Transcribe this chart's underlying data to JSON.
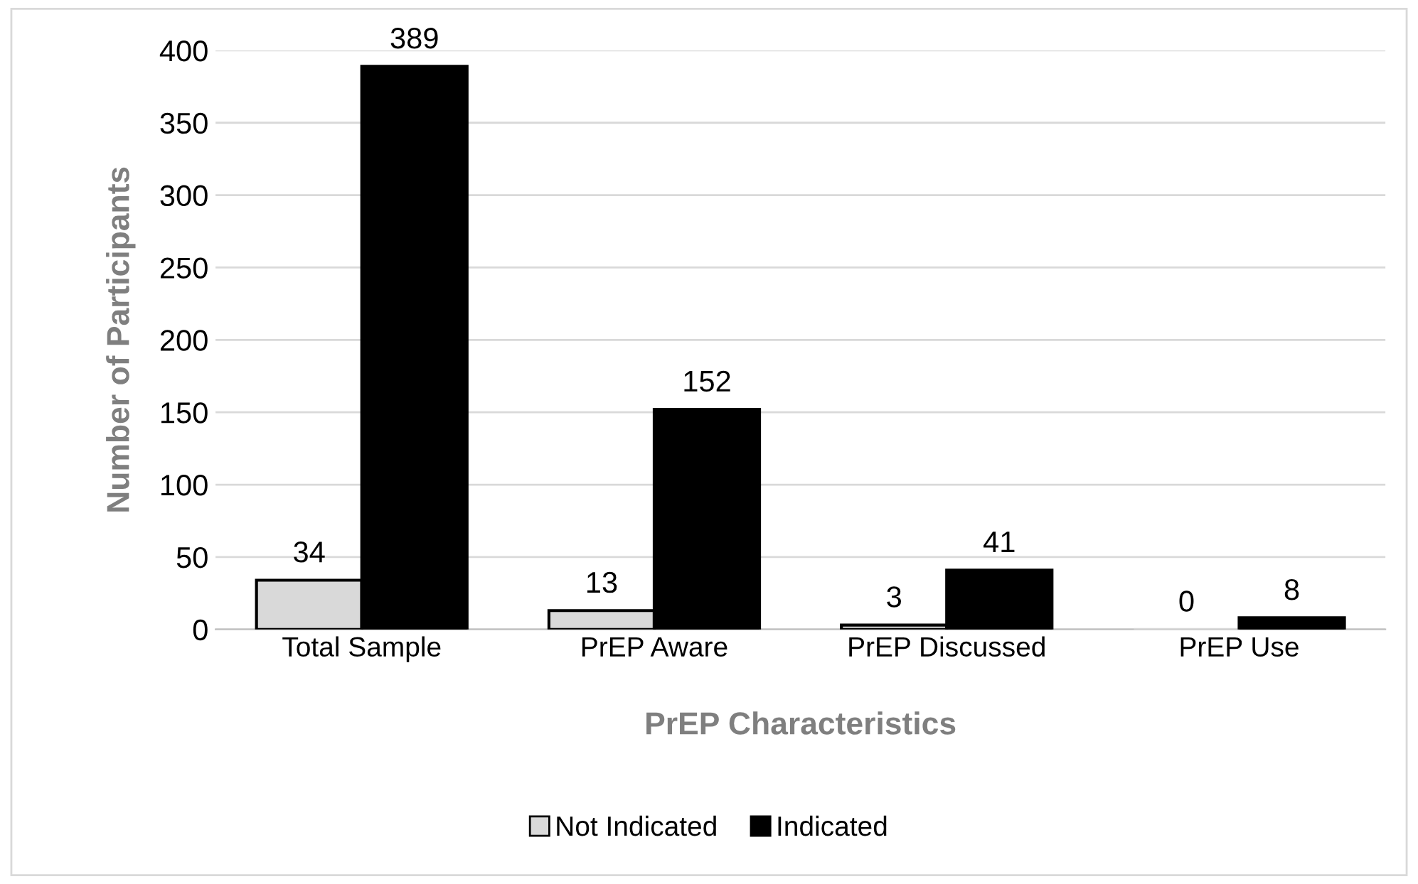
{
  "chart_data": {
    "type": "bar",
    "xlabel": "PrEP Characteristics",
    "ylabel": "Number of Participants",
    "categories": [
      "Total Sample",
      "PrEP Aware",
      "PrEP Discussed",
      "PrEP Use"
    ],
    "series": [
      {
        "name": "Not Indicated",
        "color": "#d9d9d9",
        "values": [
          34,
          13,
          3,
          0
        ]
      },
      {
        "name": "Indicated",
        "color": "#000000",
        "values": [
          389,
          152,
          41,
          8
        ]
      }
    ],
    "ylim": [
      0,
      400
    ],
    "yticks": [
      0,
      50,
      100,
      150,
      200,
      250,
      300,
      350,
      400
    ],
    "grid": "y",
    "legend": "bottom",
    "data_labels": true
  }
}
